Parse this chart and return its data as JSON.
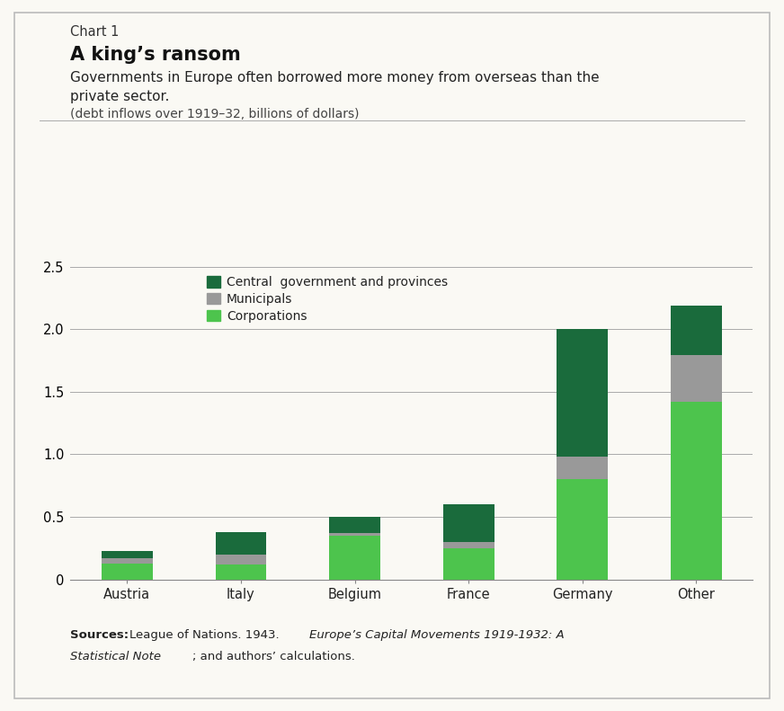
{
  "categories": [
    "Austria",
    "Italy",
    "Belgium",
    "France",
    "Germany",
    "Other"
  ],
  "corporations": [
    0.13,
    0.12,
    0.35,
    0.25,
    0.8,
    1.42
  ],
  "municipals": [
    0.04,
    0.08,
    0.02,
    0.05,
    0.18,
    0.37
  ],
  "central_govt": [
    0.06,
    0.18,
    0.13,
    0.3,
    1.02,
    0.4
  ],
  "color_corporations": "#4dc44d",
  "color_municipals": "#999999",
  "color_central_govt": "#1a6b3c",
  "chart_label": "Chart 1",
  "title": "A king’s ransom",
  "subtitle_line1": "Governments in Europe often borrowed more money from overseas than the",
  "subtitle_line2": "private sector.",
  "sub_subtitle": "(debt inflows over 1919–32, billions of dollars)",
  "ylim": [
    0,
    2.5
  ],
  "yticks": [
    0,
    0.5,
    1.0,
    1.5,
    2.0,
    2.5
  ],
  "legend_labels": [
    "Central  government and provinces",
    "Municipals",
    "Corporations"
  ],
  "background_color": "#faf9f4",
  "border_color": "#bbbbbb"
}
